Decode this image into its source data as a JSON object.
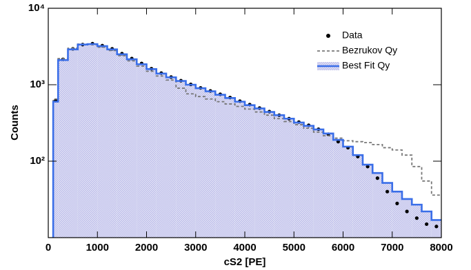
{
  "chart_data": {
    "type": "histogram",
    "xlabel": "cS2 [PE]",
    "ylabel": "Counts",
    "bins": [
      100,
      200,
      400,
      600,
      800,
      1000,
      1200,
      1400,
      1600,
      1800,
      2000,
      2200,
      2400,
      2600,
      2800,
      3000,
      3200,
      3400,
      3600,
      3800,
      4000,
      4200,
      4400,
      4600,
      4800,
      5000,
      5200,
      5400,
      5600,
      5800,
      6000,
      6200,
      6400,
      6600,
      6800,
      7000,
      7200,
      7400,
      7600,
      7800,
      8000
    ],
    "series": [
      {
        "name": "Data",
        "color": "#000000",
        "style": "points",
        "values": [
          620,
          2150,
          2950,
          3350,
          3450,
          3250,
          2950,
          2550,
          2200,
          1900,
          1620,
          1420,
          1260,
          1130,
          1010,
          910,
          830,
          750,
          680,
          610,
          550,
          495,
          445,
          400,
          360,
          325,
          295,
          262,
          225,
          180,
          150,
          115,
          85,
          60,
          40,
          28,
          22,
          18,
          15,
          14
        ]
      },
      {
        "name": "Bezrukov Qy",
        "color": "#777777",
        "style": "dashed",
        "values": [
          650,
          2200,
          3000,
          3400,
          3350,
          3100,
          2800,
          2400,
          2050,
          1750,
          1500,
          1300,
          1150,
          900,
          760,
          700,
          650,
          600,
          560,
          520,
          480,
          440,
          400,
          360,
          330,
          300,
          270,
          240,
          215,
          200,
          185,
          180,
          175,
          165,
          150,
          140,
          120,
          85,
          55,
          36
        ]
      },
      {
        "name": "Best Fit Qy",
        "color": "#3a6ee8",
        "style": "filled",
        "values": [
          600,
          2100,
          2900,
          3350,
          3400,
          3200,
          2900,
          2500,
          2150,
          1850,
          1600,
          1400,
          1250,
          1120,
          1000,
          900,
          820,
          740,
          670,
          600,
          540,
          490,
          440,
          400,
          360,
          320,
          290,
          260,
          230,
          190,
          155,
          120,
          90,
          70,
          52,
          40,
          32,
          27,
          22,
          17
        ]
      }
    ],
    "xlim": [
      0,
      8000
    ],
    "xticks": [
      0,
      1000,
      2000,
      3000,
      4000,
      5000,
      6000,
      7000,
      8000
    ],
    "ylim": [
      10,
      10000
    ],
    "ylog": true,
    "yticks": [
      {
        "value": 100,
        "label": "10²"
      },
      {
        "value": 1000,
        "label": "10³"
      },
      {
        "value": 10000,
        "label": "10⁴"
      }
    ],
    "legend": "upper right"
  }
}
